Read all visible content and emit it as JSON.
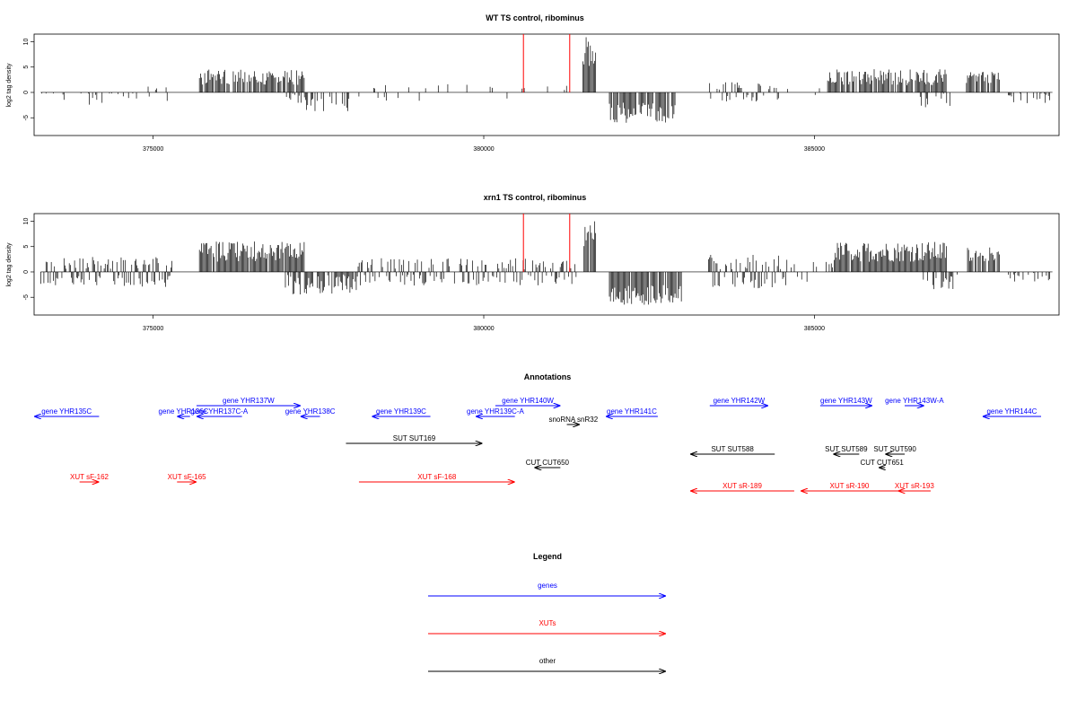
{
  "chart_data": [
    {
      "type": "bar",
      "title": "WT TS control, ribominus",
      "ylabel": "log2 tag density",
      "xlabel": "",
      "xlim": [
        373200,
        388700
      ],
      "ylim": [
        -8.5,
        11.5
      ],
      "x_ticks": [
        "375000",
        "380000",
        "385000"
      ],
      "x_tick_values": [
        375000,
        380000,
        385000
      ],
      "y_ticks": [
        "-5",
        "0",
        "5",
        "10"
      ],
      "y_tick_values": [
        -5,
        0,
        5,
        10
      ],
      "grid": false,
      "markers": [
        {
          "x": 380600,
          "y_top": 11.5,
          "color": "#ff0000"
        },
        {
          "x": 381300,
          "y_top": 11.5,
          "color": "#ff0000"
        }
      ],
      "segments": [
        {
          "from": 373300,
          "to": 374700,
          "mean": 0,
          "amp": 2.5,
          "density": 0.25,
          "sign": -1
        },
        {
          "from": 374700,
          "to": 375600,
          "mean": 0,
          "amp": 1.2,
          "density": 0.1,
          "sign": 0
        },
        {
          "from": 375700,
          "to": 377300,
          "mean": 3,
          "amp": 1.5,
          "density": 0.85,
          "sign": 1
        },
        {
          "from": 377000,
          "to": 378000,
          "mean": -2,
          "amp": 1.8,
          "density": 0.45,
          "sign": -1
        },
        {
          "from": 378000,
          "to": 380500,
          "mean": 0,
          "amp": 1.2,
          "density": 0.08,
          "sign": 0
        },
        {
          "from": 380500,
          "to": 381400,
          "mean": 0,
          "amp": 1.5,
          "density": 0.06,
          "sign": 1
        },
        {
          "from": 381500,
          "to": 381700,
          "mean": 8,
          "amp": 3,
          "density": 0.95,
          "sign": 1
        },
        {
          "from": 381900,
          "to": 382900,
          "mean": -4,
          "amp": 2,
          "density": 0.85,
          "sign": -1
        },
        {
          "from": 383400,
          "to": 384500,
          "mean": 1.5,
          "amp": 1.5,
          "density": 0.45,
          "sign": 0
        },
        {
          "from": 384500,
          "to": 385200,
          "mean": 0,
          "amp": 1,
          "density": 0.06,
          "sign": 0
        },
        {
          "from": 385200,
          "to": 387000,
          "mean": 3,
          "amp": 1.6,
          "density": 0.85,
          "sign": 1
        },
        {
          "from": 386600,
          "to": 387100,
          "mean": -1.5,
          "amp": 1.5,
          "density": 0.2,
          "sign": -1
        },
        {
          "from": 387300,
          "to": 387800,
          "mean": 3,
          "amp": 1.2,
          "density": 0.85,
          "sign": 1
        },
        {
          "from": 387900,
          "to": 388600,
          "mean": -1,
          "amp": 1.2,
          "density": 0.3,
          "sign": -1
        }
      ]
    },
    {
      "type": "bar",
      "title": "xrn1 TS control, ribominus",
      "ylabel": "log2 tag density",
      "xlabel": "",
      "xlim": [
        373200,
        388700
      ],
      "ylim": [
        -8.5,
        11.5
      ],
      "x_ticks": [
        "375000",
        "380000",
        "385000"
      ],
      "x_tick_values": [
        375000,
        380000,
        385000
      ],
      "y_ticks": [
        "-5",
        "0",
        "5",
        "10"
      ],
      "y_tick_values": [
        -5,
        0,
        5,
        10
      ],
      "grid": false,
      "markers": [
        {
          "x": 380600,
          "y_top": 11.5,
          "color": "#ff0000"
        },
        {
          "x": 381300,
          "y_top": 11.5,
          "color": "#ff0000"
        }
      ],
      "segments": [
        {
          "from": 373300,
          "to": 375300,
          "mean": 0,
          "amp": 2.5,
          "density": 0.7,
          "sign": 0
        },
        {
          "from": 375700,
          "to": 377300,
          "mean": 4,
          "amp": 2,
          "density": 0.95,
          "sign": 1
        },
        {
          "from": 377000,
          "to": 378100,
          "mean": -2.5,
          "amp": 2,
          "density": 0.7,
          "sign": -1
        },
        {
          "from": 378100,
          "to": 381400,
          "mean": 0,
          "amp": 2.2,
          "density": 0.6,
          "sign": 0
        },
        {
          "from": 381500,
          "to": 381700,
          "mean": 8,
          "amp": 3,
          "density": 0.95,
          "sign": 1
        },
        {
          "from": 381900,
          "to": 383000,
          "mean": -4.5,
          "amp": 2,
          "density": 0.9,
          "sign": -1
        },
        {
          "from": 383400,
          "to": 384600,
          "mean": 0,
          "amp": 3,
          "density": 0.8,
          "sign": 0
        },
        {
          "from": 384600,
          "to": 385300,
          "mean": 0,
          "amp": 1.5,
          "density": 0.3,
          "sign": 0
        },
        {
          "from": 385300,
          "to": 387000,
          "mean": 4,
          "amp": 2,
          "density": 0.95,
          "sign": 1
        },
        {
          "from": 386600,
          "to": 387200,
          "mean": -2,
          "amp": 1.5,
          "density": 0.35,
          "sign": -1
        },
        {
          "from": 387300,
          "to": 387800,
          "mean": 3.5,
          "amp": 1.5,
          "density": 0.9,
          "sign": 1
        },
        {
          "from": 387900,
          "to": 388600,
          "mean": -1,
          "amp": 1.5,
          "density": 0.45,
          "sign": -1
        }
      ]
    }
  ],
  "annotations": {
    "title": "Annotations",
    "colors": {
      "gene": "#0000ff",
      "xut": "#ff0000",
      "other": "#000000"
    },
    "features": [
      {
        "label": "gene YHR135C",
        "kind": "gene",
        "start": 373200,
        "end": 374200,
        "strand": "-",
        "row": 1
      },
      {
        "label": "gene YHR136C",
        "kind": "gene",
        "start": 375400,
        "end": 375600,
        "strand": "-",
        "row": 1
      },
      {
        "label": "gene YHR137W",
        "kind": "gene",
        "start": 375700,
        "end": 377300,
        "strand": "+",
        "row": 0
      },
      {
        "label": "gene YHR137C-A",
        "kind": "gene",
        "start": 375700,
        "end": 376400,
        "strand": "-",
        "row": 1
      },
      {
        "label": "gene YHR138C",
        "kind": "gene",
        "start": 377300,
        "end": 377600,
        "strand": "-",
        "row": 1
      },
      {
        "label": "gene YHR139C",
        "kind": "gene",
        "start": 378400,
        "end": 379300,
        "strand": "-",
        "row": 1
      },
      {
        "label": "gene YHR139C-A",
        "kind": "gene",
        "start": 380000,
        "end": 380600,
        "strand": "-",
        "row": 1
      },
      {
        "label": "gene YHR140W",
        "kind": "gene",
        "start": 380300,
        "end": 381300,
        "strand": "+",
        "row": 0
      },
      {
        "label": "gene YHR141C",
        "kind": "gene",
        "start": 382000,
        "end": 382800,
        "strand": "-",
        "row": 1
      },
      {
        "label": "gene YHR142W",
        "kind": "gene",
        "start": 383600,
        "end": 384500,
        "strand": "+",
        "row": 0
      },
      {
        "label": "gene YHR143W",
        "kind": "gene",
        "start": 385300,
        "end": 386100,
        "strand": "+",
        "row": 0
      },
      {
        "label": "gene YHR143W-A",
        "kind": "gene",
        "start": 386600,
        "end": 386900,
        "strand": "+",
        "row": 0
      },
      {
        "label": "gene YHR144C",
        "kind": "gene",
        "start": 387800,
        "end": 388700,
        "strand": "-",
        "row": 1
      },
      {
        "label": "snoRNA snR32",
        "kind": "other",
        "start": 381400,
        "end": 381600,
        "strand": "+",
        "row": 2
      },
      {
        "label": "SUT SUT169",
        "kind": "other",
        "start": 378000,
        "end": 380100,
        "strand": "+",
        "row": 3
      },
      {
        "label": "SUT SUT588",
        "kind": "other",
        "start": 383300,
        "end": 384600,
        "strand": "-",
        "row": 4
      },
      {
        "label": "SUT SUT589",
        "kind": "other",
        "start": 385500,
        "end": 385900,
        "strand": "-",
        "row": 4
      },
      {
        "label": "SUT SUT590",
        "kind": "other",
        "start": 386300,
        "end": 386600,
        "strand": "-",
        "row": 4
      },
      {
        "label": "CUT CUT650",
        "kind": "other",
        "start": 380900,
        "end": 381300,
        "strand": "-",
        "row": 5
      },
      {
        "label": "CUT CUT651",
        "kind": "other",
        "start": 386200,
        "end": 386300,
        "strand": "-",
        "row": 5
      },
      {
        "label": "XUT sF-162",
        "kind": "xut",
        "start": 373900,
        "end": 374200,
        "strand": "+",
        "row": 6
      },
      {
        "label": "XUT sF-165",
        "kind": "xut",
        "start": 375400,
        "end": 375700,
        "strand": "+",
        "row": 6
      },
      {
        "label": "XUT sF-168",
        "kind": "xut",
        "start": 378200,
        "end": 380600,
        "strand": "+",
        "row": 6
      },
      {
        "label": "XUT sR-189",
        "kind": "xut",
        "start": 383300,
        "end": 384900,
        "strand": "-",
        "row": 7
      },
      {
        "label": "XUT sR-190",
        "kind": "xut",
        "start": 385000,
        "end": 386500,
        "strand": "-",
        "row": 7
      },
      {
        "label": "XUT sR-193",
        "kind": "xut",
        "start": 386500,
        "end": 387000,
        "strand": "-",
        "row": 7
      }
    ]
  },
  "legend": {
    "title": "Legend",
    "items": [
      {
        "label": "genes",
        "color": "#0000ff"
      },
      {
        "label": "XUTs",
        "color": "#ff0000"
      },
      {
        "label": "other",
        "color": "#000000"
      }
    ]
  }
}
